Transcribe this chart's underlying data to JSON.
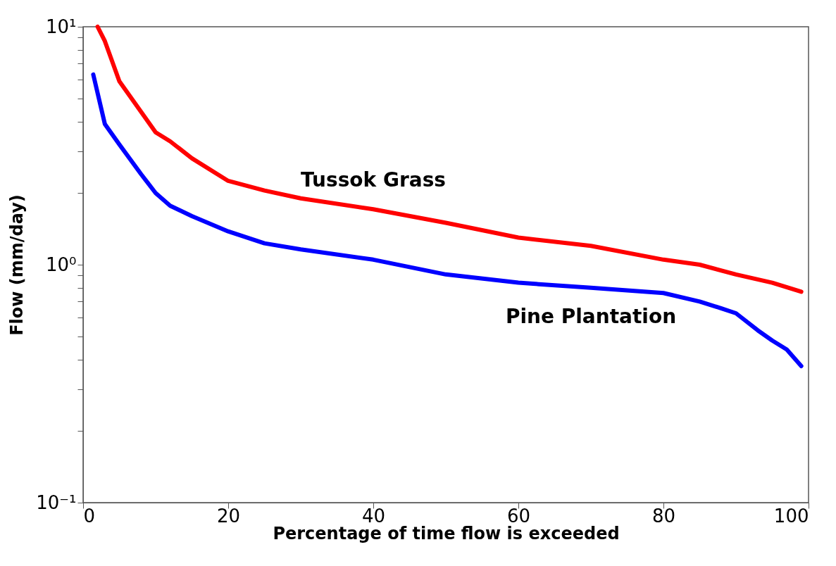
{
  "chart_data": {
    "type": "line",
    "xlabel": "Percentage of time flow is exceeded",
    "ylabel": "Flow (mm/day)",
    "log": true,
    "grid": false,
    "line_style": "solid",
    "marker": "none",
    "xlim": [
      0,
      100
    ],
    "xticks": [
      0,
      20,
      40,
      60,
      80,
      100
    ],
    "ylim": [
      0.1,
      10
    ],
    "yticks": [
      {
        "value": 0.1,
        "label": "10⁻¹"
      },
      {
        "value": 0.2,
        "label": null
      },
      {
        "value": 0.3,
        "label": null
      },
      {
        "value": 0.4,
        "label": null
      },
      {
        "value": 0.5,
        "label": null
      },
      {
        "value": 0.6,
        "label": null
      },
      {
        "value": 0.7,
        "label": null
      },
      {
        "value": 0.8,
        "label": null
      },
      {
        "value": 0.9,
        "label": null
      },
      {
        "value": 1,
        "label": "10⁰"
      },
      {
        "value": 2,
        "label": null
      },
      {
        "value": 3,
        "label": null
      },
      {
        "value": 4,
        "label": null
      },
      {
        "value": 5,
        "label": null
      },
      {
        "value": 6,
        "label": null
      },
      {
        "value": 7,
        "label": null
      },
      {
        "value": 8,
        "label": null
      },
      {
        "value": 9,
        "label": null
      },
      {
        "value": 10,
        "label": "10¹"
      }
    ],
    "series": [
      {
        "name": "Tussok Grass",
        "color": "#ff0000",
        "x": [
          2,
          3,
          5,
          10,
          12,
          15,
          20,
          25,
          30,
          40,
          50,
          60,
          70,
          80,
          85,
          90,
          95,
          99
        ],
        "values": [
          10,
          8.7,
          5.9,
          3.6,
          3.3,
          2.8,
          2.25,
          2.05,
          1.9,
          1.71,
          1.5,
          1.3,
          1.2,
          1.05,
          1.0,
          0.91,
          0.84,
          0.77
        ]
      },
      {
        "name": "Pine Plantation",
        "color": "#0000ff",
        "x": [
          1.4,
          3,
          5,
          8,
          10,
          12,
          15,
          20,
          25,
          30,
          40,
          50,
          60,
          70,
          80,
          85,
          88,
          90,
          93,
          95,
          97,
          99
        ],
        "values": [
          6.3,
          3.9,
          3.2,
          2.4,
          2.0,
          1.77,
          1.6,
          1.38,
          1.23,
          1.16,
          1.05,
          0.91,
          0.84,
          0.8,
          0.76,
          0.7,
          0.655,
          0.625,
          0.53,
          0.48,
          0.44,
          0.375
        ]
      }
    ]
  }
}
